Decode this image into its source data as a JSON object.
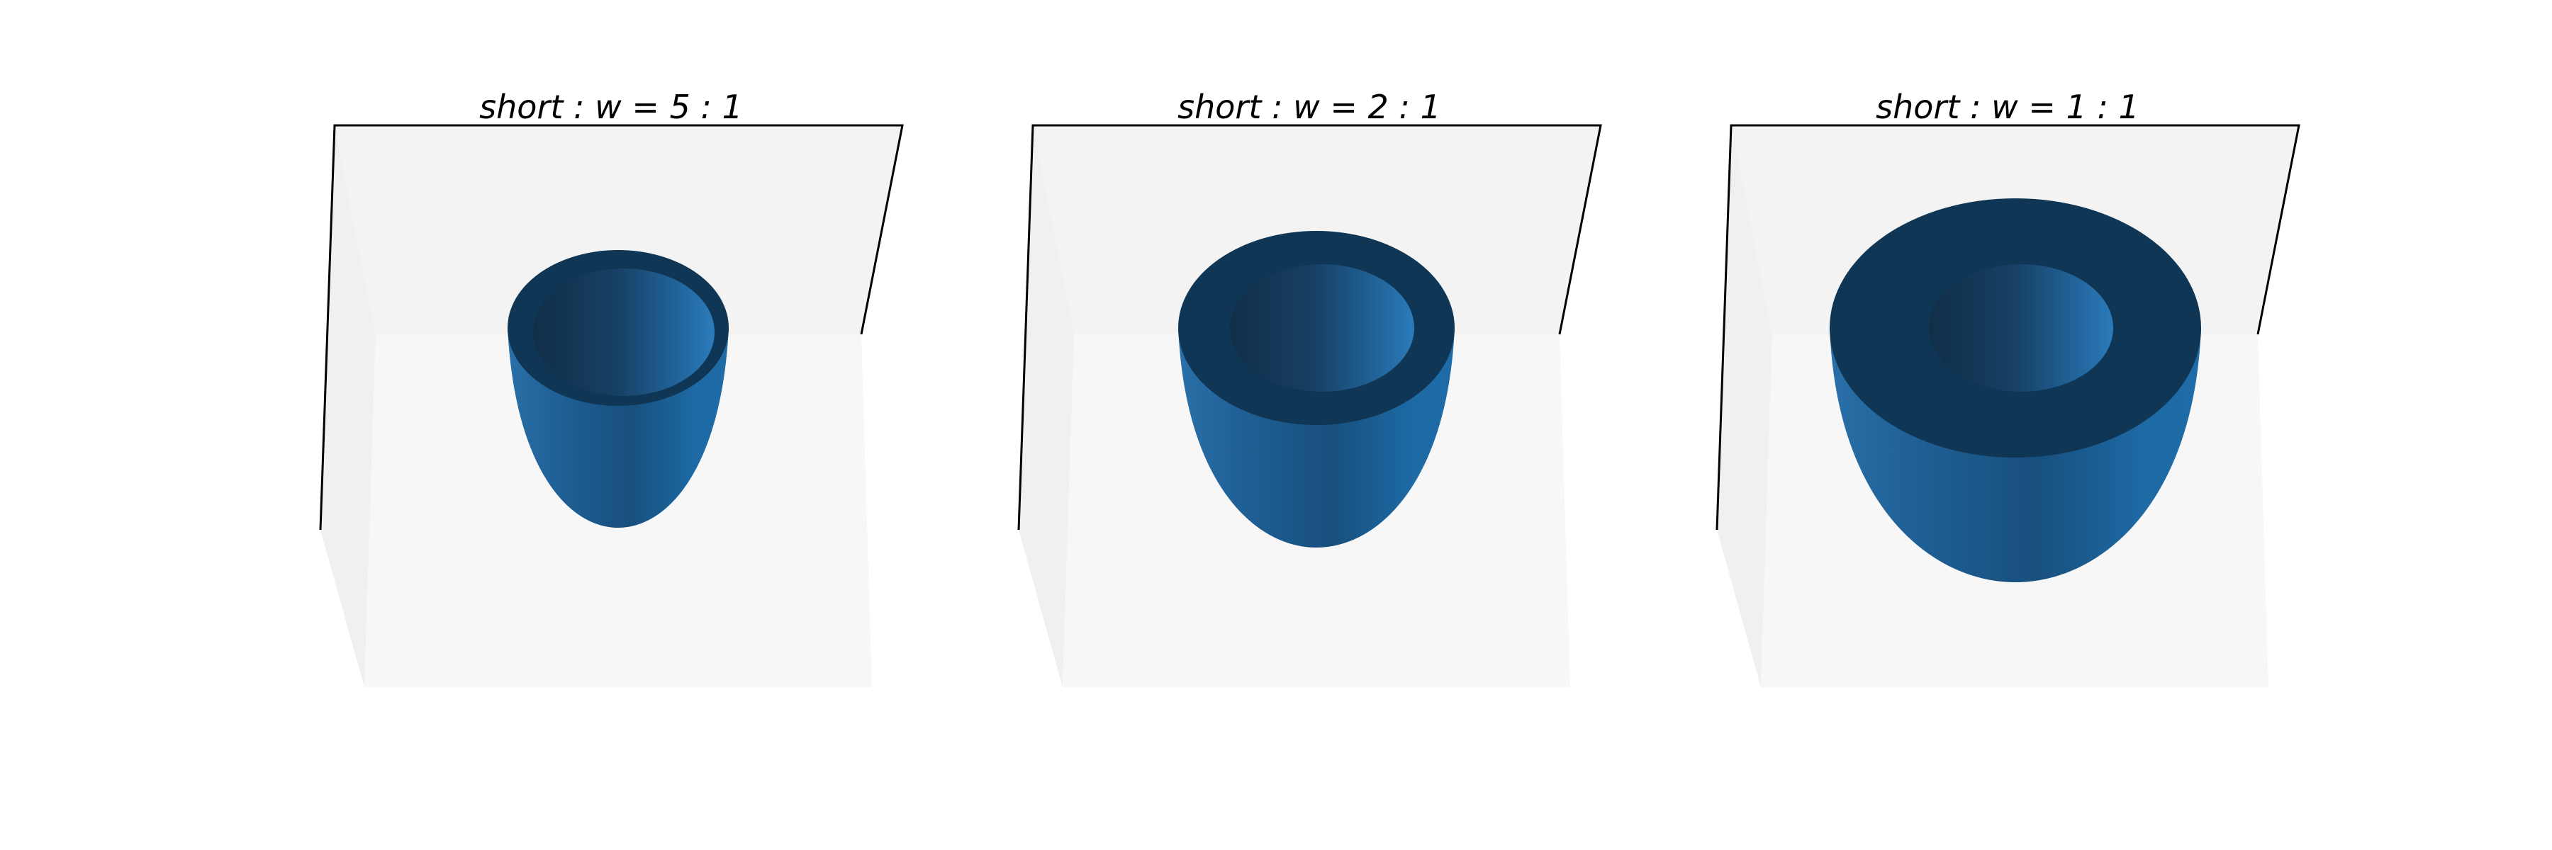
{
  "figure": {
    "background": "#ffffff",
    "surface_color": "#1f77b4",
    "interior_color": "#0f3654",
    "back_pane_color": "#f3f3f3",
    "side_pane_color": "#f0f0f0",
    "floor_pane_color": "#f7f7f7",
    "edge_color": "#000000"
  },
  "chart_data": [
    {
      "type": "surface",
      "title": "short : w = 5 : 1",
      "aspect_ratio": "5:1",
      "grid": false,
      "axes_visible": false
    },
    {
      "type": "surface",
      "title": "short : w = 2 : 1",
      "aspect_ratio": "2:1",
      "grid": false,
      "axes_visible": false
    },
    {
      "type": "surface",
      "title": "short : w = 1 : 1",
      "aspect_ratio": "1:1",
      "grid": false,
      "axes_visible": false
    }
  ]
}
